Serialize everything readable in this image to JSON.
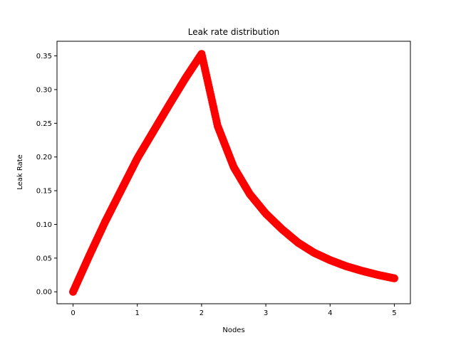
{
  "chart_data": {
    "type": "scatter",
    "title": "Leak rate distribution",
    "xlabel": "Nodes",
    "ylabel": "Leak Rate",
    "xlim": [
      -0.25,
      5.25
    ],
    "ylim": [
      -0.0177,
      0.3717
    ],
    "x_ticks": [
      0,
      1,
      2,
      3,
      4,
      5
    ],
    "x_tick_labels": [
      "0",
      "1",
      "2",
      "3",
      "4",
      "5"
    ],
    "y_ticks": [
      0.0,
      0.05,
      0.1,
      0.15,
      0.2,
      0.25,
      0.3,
      0.35
    ],
    "y_tick_labels": [
      "0.00",
      "0.05",
      "0.10",
      "0.15",
      "0.20",
      "0.25",
      "0.30",
      "0.35"
    ],
    "grid": false,
    "legend": "none",
    "marker_color": "#ff0000",
    "series": [
      {
        "x": [
          0,
          0.25,
          0.5,
          0.75,
          1.0,
          1.25,
          1.5,
          1.75,
          2.0,
          2.25,
          2.5,
          2.75,
          3.0,
          3.25,
          3.5,
          3.75,
          4.0,
          4.25,
          4.5,
          4.75,
          5.0
        ],
        "values": [
          0.0,
          0.053,
          0.104,
          0.151,
          0.198,
          0.238,
          0.278,
          0.317,
          0.353,
          0.246,
          0.185,
          0.145,
          0.116,
          0.093,
          0.073,
          0.058,
          0.047,
          0.038,
          0.031,
          0.025,
          0.02
        ]
      }
    ]
  }
}
